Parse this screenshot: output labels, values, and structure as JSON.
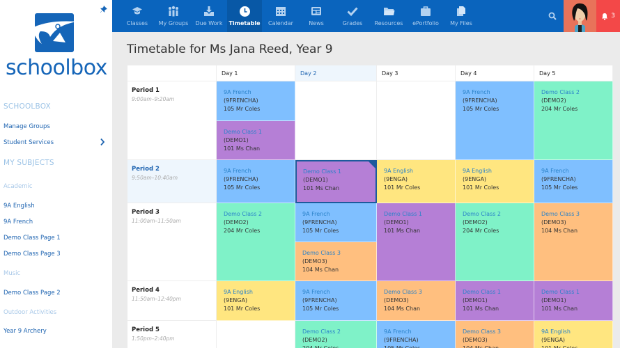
{
  "sidebar": {
    "logo_text": "schoolbox",
    "sections": [
      {
        "heading": "SCHOOLBOX",
        "items": [
          {
            "label": "Manage Groups"
          },
          {
            "label": "Student Services",
            "has_chevron": true
          }
        ]
      },
      {
        "heading": "MY SUBJECTS",
        "groups": [
          {
            "label": "Academic",
            "items": [
              "9A English",
              "9A French",
              "Demo Class Page 1",
              "Demo Class Page 3"
            ]
          },
          {
            "label": "Music",
            "items": [
              "Demo Class Page 2"
            ]
          },
          {
            "label": "Outdoor Activities",
            "items": [
              "Year 9 Archery"
            ]
          }
        ]
      }
    ]
  },
  "topnav": {
    "items": [
      {
        "label": "Classes",
        "icon": "graduation-cap-icon"
      },
      {
        "label": "My Groups",
        "icon": "people-icon"
      },
      {
        "label": "Due Work",
        "icon": "download-tray-icon"
      },
      {
        "label": "Timetable",
        "icon": "clock-icon",
        "active": true
      },
      {
        "label": "Calendar",
        "icon": "calendar-icon"
      },
      {
        "label": "News",
        "icon": "newspaper-icon"
      },
      {
        "label": "Grades",
        "icon": "checkmark-icon"
      },
      {
        "label": "Resources",
        "icon": "folder-icon"
      },
      {
        "label": "ePortfolio",
        "icon": "briefcase-icon"
      },
      {
        "label": "My Files",
        "icon": "files-icon"
      }
    ],
    "notification_count": "3",
    "colors": {
      "bar": "#0a64bd",
      "avatar_bg": "#e8735a",
      "notif_bg": "#f34848"
    }
  },
  "page": {
    "title": "Timetable for Ms Jana Reed, Year 9"
  },
  "timetable": {
    "days": [
      "Day 1",
      "Day 2",
      "Day 3",
      "Day 4",
      "Day 5"
    ],
    "today_index": 1,
    "periods": [
      {
        "name": "Period 1",
        "time": "9:00am–9:20am"
      },
      {
        "name": "Period 2",
        "time": "9:50am–10:40am",
        "current": true
      },
      {
        "name": "Period 3",
        "time": "11:00am–11:50am"
      },
      {
        "name": "Period 4",
        "time": "11:50am–12:40pm"
      },
      {
        "name": "Period 5",
        "time": "1:50pm–2:40pm"
      }
    ],
    "classes": {
      "french": {
        "name": "9A French",
        "code": "(9FRENCHA)",
        "room": "105 Mr Coles",
        "color": "#7fbfff"
      },
      "english": {
        "name": "9A English",
        "code": "(9ENGA)",
        "room": "101 Mr Coles",
        "color": "#ffe680"
      },
      "demo1": {
        "name": "Demo Class 1",
        "code": "(DEMO1)",
        "room": "101 Ms Chan",
        "color": "#b57fd6"
      },
      "demo2": {
        "name": "Demo Class 2",
        "code": "(DEMO2)",
        "room": "204 Mr Coles",
        "color": "#7ff2c8"
      },
      "demo3": {
        "name": "Demo Class 3",
        "code": "(DEMO3)",
        "room": "104 Ms Chan",
        "color": "#ffbf7f"
      }
    },
    "grid": [
      [
        [
          "french",
          "demo1"
        ],
        [],
        [],
        [
          "french"
        ],
        [
          "demo2"
        ]
      ],
      [
        [
          "french"
        ],
        [
          "demo1"
        ],
        [
          "english"
        ],
        [
          "english"
        ],
        [
          "french"
        ]
      ],
      [
        [
          "demo2"
        ],
        [
          "french",
          "demo3"
        ],
        [
          "demo1"
        ],
        [
          "demo2"
        ],
        [
          "demo3"
        ]
      ],
      [
        [
          "english"
        ],
        [
          "french"
        ],
        [
          "demo3"
        ],
        [
          "demo1"
        ],
        [
          "demo1"
        ]
      ],
      [
        [],
        [
          "demo2"
        ],
        [
          "french"
        ],
        [
          "demo3"
        ],
        [
          "english"
        ]
      ]
    ],
    "selected": {
      "period": 1,
      "day": 1
    }
  }
}
